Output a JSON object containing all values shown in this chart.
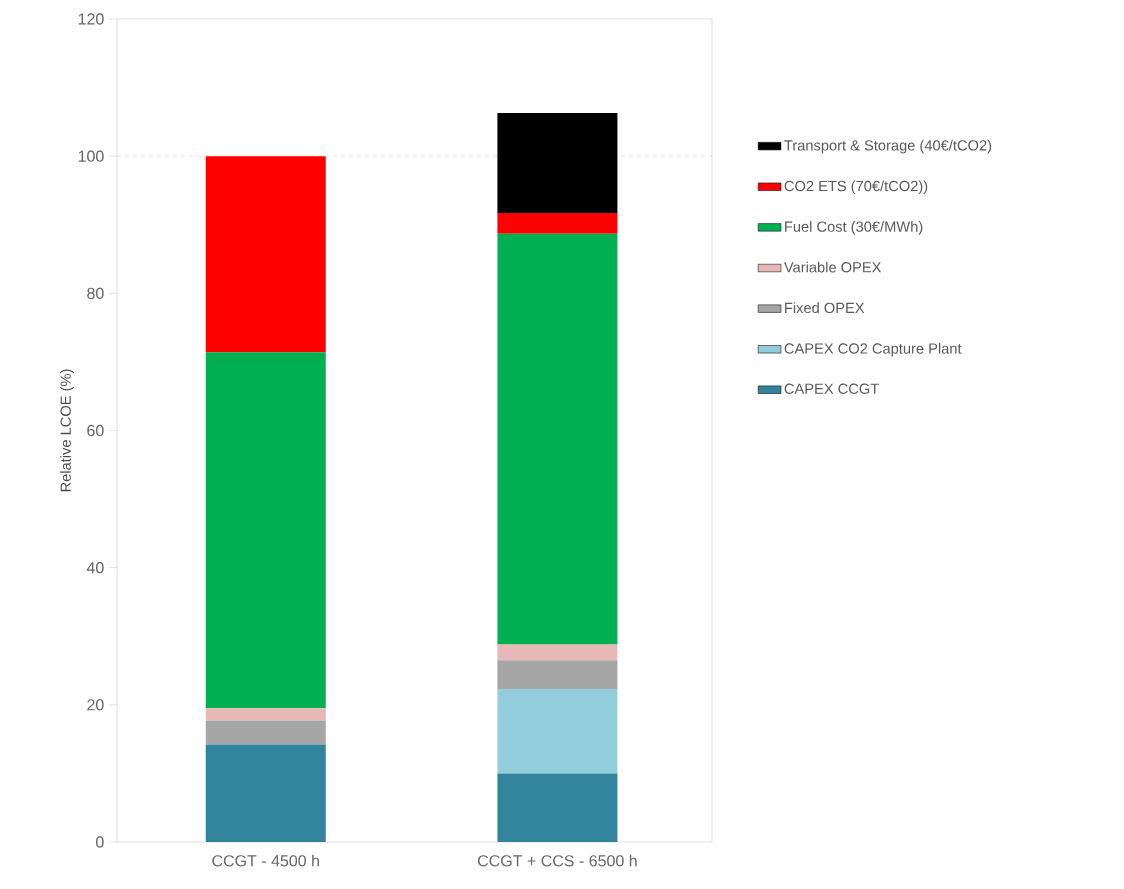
{
  "chart_data": {
    "type": "bar",
    "stacked": true,
    "ylabel": "Relative LCOE (%)",
    "categories": [
      "CCGT - 4500 h",
      "CCGT + CCS - 6500 h"
    ],
    "series": [
      {
        "name": "CAPEX CCGT",
        "color": "#31849b",
        "values": [
          14.2,
          10.0
        ]
      },
      {
        "name": "CAPEX CO2 Capture Plant",
        "color": "#92cddc",
        "values": [
          0,
          12.3
        ]
      },
      {
        "name": "Fixed OPEX",
        "color": "#a6a6a6",
        "values": [
          3.5,
          4.2
        ]
      },
      {
        "name": "Variable OPEX",
        "color": "#e6b9b8",
        "values": [
          1.8,
          2.3
        ]
      },
      {
        "name": "Fuel Cost (30€/MWh)",
        "color": "#00b050",
        "values": [
          51.9,
          59.9
        ]
      },
      {
        "name": "CO2 ETS (70€/tCO2))",
        "color": "#ff0000",
        "values": [
          28.6,
          3.0
        ]
      },
      {
        "name": "Transport & Storage (40€/tCO2)",
        "color": "#000000",
        "values": [
          0,
          14.6
        ]
      }
    ],
    "ylim": [
      0,
      120
    ],
    "yticks": [
      0,
      20,
      40,
      60,
      80,
      100,
      120
    ],
    "ref_lines": [
      {
        "axis": "y",
        "value": 100,
        "line_style": "dashed",
        "color": "#a6a6a6"
      }
    ],
    "legend": "right"
  }
}
